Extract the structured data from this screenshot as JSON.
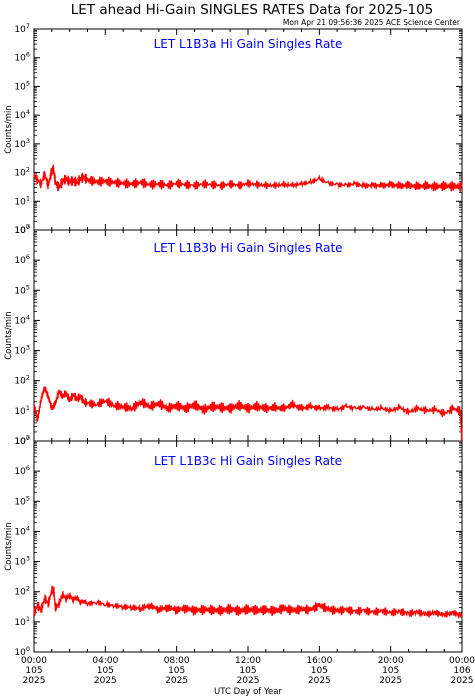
{
  "page": {
    "title": "LET ahead Hi-Gain SINGLES RATES Data for 2025-105",
    "timestamp": "Mon Apr 21 09:56:36 2025 ACE Science Center"
  },
  "colors": {
    "series": "#ff0000",
    "panel_title": "#0000ff",
    "axis": "#000000"
  },
  "chart_data": [
    {
      "type": "line",
      "title": "LET L1B3a Hi Gain Singles Rate",
      "ylabel": "Counts/min",
      "yscale": "log",
      "ylim": [
        1,
        10000000
      ],
      "xlim": [
        0,
        24
      ],
      "y_tick_labels": [
        {
          "base": "10",
          "exp": "0"
        },
        {
          "base": "10",
          "exp": "1"
        },
        {
          "base": "10",
          "exp": "2"
        },
        {
          "base": "10",
          "exp": "3"
        },
        {
          "base": "10",
          "exp": "4"
        },
        {
          "base": "10",
          "exp": "5"
        },
        {
          "base": "10",
          "exp": "6"
        },
        {
          "base": "10",
          "exp": "7"
        }
      ],
      "series": [
        {
          "x": [
            0,
            0.2,
            0.4,
            0.6,
            0.8,
            1.0,
            1.1,
            1.2,
            1.4,
            1.6,
            1.8,
            2.0,
            2.2,
            2.4,
            2.6,
            2.8,
            3.0,
            3.5,
            4.0,
            4.5,
            5.0,
            5.5,
            6.0,
            6.5,
            7.0,
            7.5,
            8.0,
            8.5,
            9.0,
            9.5,
            10.0,
            10.5,
            11.0,
            11.5,
            12.0,
            12.5,
            13.0,
            13.5,
            14.0,
            14.5,
            15.0,
            15.5,
            16.0,
            16.5,
            17.0,
            17.5,
            18.0,
            18.5,
            19.0,
            19.5,
            20.0,
            20.5,
            21.0,
            21.5,
            22.0,
            22.5,
            23.0,
            23.5,
            24.0
          ],
          "values": [
            80,
            55,
            40,
            90,
            35,
            120,
            130,
            45,
            30,
            50,
            60,
            48,
            52,
            45,
            60,
            70,
            55,
            48,
            50,
            45,
            42,
            40,
            45,
            38,
            40,
            36,
            42,
            38,
            36,
            40,
            38,
            35,
            40,
            36,
            42,
            38,
            36,
            35,
            38,
            36,
            40,
            45,
            60,
            42,
            38,
            36,
            40,
            34,
            36,
            35,
            38,
            34,
            36,
            33,
            35,
            32,
            34,
            33,
            32
          ]
        }
      ]
    },
    {
      "type": "line",
      "title": "LET L1B3b Hi Gain Singles Rate",
      "ylabel": "Counts/min",
      "yscale": "log",
      "ylim": [
        1,
        10000000
      ],
      "xlim": [
        0,
        24
      ],
      "y_tick_labels": [
        {
          "base": "10",
          "exp": "0"
        },
        {
          "base": "10",
          "exp": "1"
        },
        {
          "base": "10",
          "exp": "2"
        },
        {
          "base": "10",
          "exp": "3"
        },
        {
          "base": "10",
          "exp": "4"
        },
        {
          "base": "10",
          "exp": "5"
        },
        {
          "base": "10",
          "exp": "6"
        },
        {
          "base": "10",
          "exp": "7"
        }
      ],
      "series": [
        {
          "x": [
            0,
            0.2,
            0.4,
            0.6,
            0.8,
            1.0,
            1.2,
            1.4,
            1.6,
            1.8,
            2.0,
            2.2,
            2.4,
            2.6,
            2.8,
            3.0,
            3.5,
            4.0,
            4.5,
            5.0,
            5.5,
            6.0,
            6.5,
            7.0,
            7.5,
            8.0,
            8.5,
            9.0,
            9.5,
            10.0,
            10.5,
            11.0,
            11.5,
            12.0,
            12.5,
            13.0,
            13.5,
            14.0,
            14.5,
            15.0,
            15.5,
            16.0,
            16.5,
            17.0,
            17.5,
            18.0,
            18.5,
            19.0,
            19.5,
            20.0,
            20.5,
            21.0,
            21.5,
            22.0,
            22.5,
            23.0,
            23.5,
            23.9,
            24.0
          ],
          "values": [
            15,
            5,
            25,
            60,
            30,
            12,
            18,
            45,
            30,
            40,
            22,
            35,
            25,
            30,
            20,
            18,
            16,
            22,
            15,
            14,
            12,
            20,
            14,
            18,
            12,
            15,
            12,
            16,
            11,
            14,
            13,
            12,
            15,
            12,
            14,
            12,
            13,
            12,
            16,
            12,
            14,
            12,
            13,
            11,
            14,
            12,
            13,
            11,
            12,
            10,
            13,
            9,
            12,
            10,
            11,
            8,
            12,
            10,
            1
          ]
        }
      ]
    },
    {
      "type": "line",
      "title": "LET L1B3c Hi Gain Singles Rate",
      "ylabel": "Counts/min",
      "xlabel": "UTC Day of Year",
      "yscale": "log",
      "ylim": [
        1,
        10000000
      ],
      "xlim": [
        0,
        24
      ],
      "y_tick_labels": [
        {
          "base": "10",
          "exp": "0"
        },
        {
          "base": "10",
          "exp": "1"
        },
        {
          "base": "10",
          "exp": "2"
        },
        {
          "base": "10",
          "exp": "3"
        },
        {
          "base": "10",
          "exp": "4"
        },
        {
          "base": "10",
          "exp": "5"
        },
        {
          "base": "10",
          "exp": "6"
        },
        {
          "base": "10",
          "exp": "7"
        }
      ],
      "x_tick_labels": [
        {
          "time": "00:00",
          "doy": "105",
          "year": "2025"
        },
        {
          "time": "04:00",
          "doy": "105",
          "year": "2025"
        },
        {
          "time": "08:00",
          "doy": "105",
          "year": "2025"
        },
        {
          "time": "12:00",
          "doy": "105",
          "year": "2025"
        },
        {
          "time": "16:00",
          "doy": "105",
          "year": "2025"
        },
        {
          "time": "20:00",
          "doy": "105",
          "year": "2025"
        },
        {
          "time": "00:00",
          "doy": "106",
          "year": "2025"
        }
      ],
      "series": [
        {
          "x": [
            0,
            0.2,
            0.4,
            0.6,
            0.8,
            1.0,
            1.1,
            1.2,
            1.4,
            1.6,
            1.8,
            2.0,
            2.2,
            2.4,
            2.6,
            2.8,
            3.0,
            3.5,
            4.0,
            4.5,
            5.0,
            5.5,
            6.0,
            6.5,
            7.0,
            7.5,
            8.0,
            8.5,
            9.0,
            9.5,
            10.0,
            10.5,
            11.0,
            11.5,
            12.0,
            12.5,
            13.0,
            13.5,
            14.0,
            14.5,
            15.0,
            15.5,
            16.0,
            16.5,
            17.0,
            17.5,
            18.0,
            18.5,
            19.0,
            19.5,
            20.0,
            20.5,
            21.0,
            21.5,
            22.0,
            22.5,
            23.0,
            23.5,
            24.0
          ],
          "values": [
            20,
            35,
            25,
            60,
            40,
            110,
            120,
            30,
            40,
            80,
            60,
            75,
            55,
            65,
            45,
            50,
            40,
            45,
            38,
            35,
            32,
            30,
            28,
            35,
            26,
            30,
            25,
            28,
            24,
            26,
            25,
            24,
            27,
            23,
            26,
            24,
            25,
            23,
            28,
            24,
            26,
            25,
            35,
            26,
            23,
            25,
            22,
            24,
            21,
            23,
            20,
            22,
            19,
            21,
            18,
            20,
            17,
            20,
            16
          ]
        }
      ]
    }
  ]
}
